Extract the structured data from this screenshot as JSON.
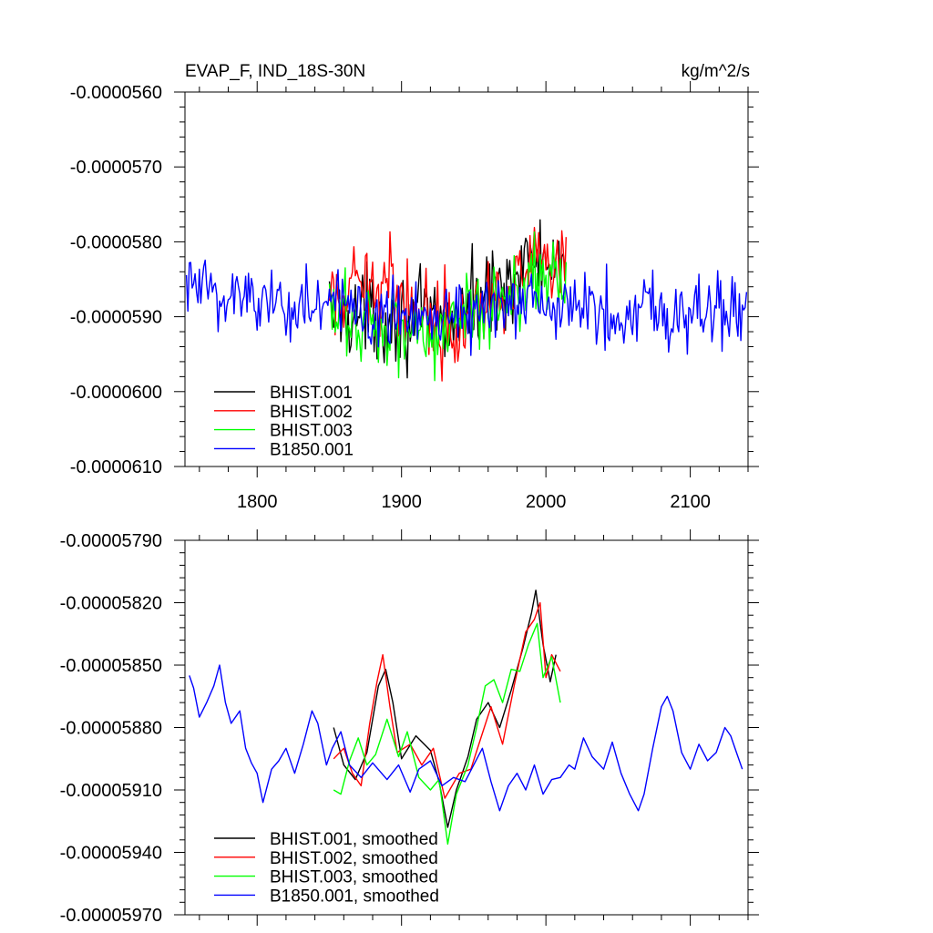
{
  "chart_data": [
    {
      "type": "line",
      "title": "EVAP_F, IND_18S-30N",
      "units_label": "kg/m^2/s",
      "xlabel": "",
      "ylabel": "",
      "xlim": [
        1750,
        2140
      ],
      "ylim": [
        -6.1e-05,
        -5.6e-05
      ],
      "x_ticks": [
        1800,
        1900,
        2000,
        2100
      ],
      "x_tick_labels": [
        "1800",
        "1900",
        "2000",
        "2100"
      ],
      "y_ticks": [
        -5.6e-05,
        -5.7e-05,
        -5.8e-05,
        -5.9e-05,
        -6e-05,
        -6.1e-05
      ],
      "y_tick_labels": [
        "-0.0000560",
        "-0.0000570",
        "-0.0000580",
        "-0.0000590",
        "-0.0000600",
        "-0.0000610"
      ],
      "grid": false,
      "legend_position": "bottom-left",
      "series": [
        {
          "name": "BHIST.001",
          "color": "#000000",
          "x_start": 1850,
          "x_end": 2014,
          "mean": -5.89e-05,
          "amp": 4e-07,
          "trend": [
            [
              1850,
              0
            ],
            [
              1930,
              -2e-07
            ],
            [
              1995,
              7e-07
            ],
            [
              2014,
              3e-07
            ]
          ]
        },
        {
          "name": "BHIST.002",
          "color": "#ff0000",
          "x_start": 1850,
          "x_end": 2014,
          "mean": -5.89e-05,
          "amp": 4e-07,
          "trend": [
            [
              1850,
              0
            ],
            [
              1885,
              4e-07
            ],
            [
              1930,
              -2e-07
            ],
            [
              1995,
              6e-07
            ],
            [
              2014,
              4e-07
            ]
          ]
        },
        {
          "name": "BHIST.003",
          "color": "#00ff00",
          "x_start": 1850,
          "x_end": 2014,
          "mean": -5.89e-05,
          "amp": 4e-07,
          "trend": [
            [
              1850,
              -1e-07
            ],
            [
              1930,
              -3e-07
            ],
            [
              1995,
              5e-07
            ],
            [
              2014,
              4e-07
            ]
          ]
        },
        {
          "name": "B1850.001",
          "color": "#0000ff",
          "x_start": 1751,
          "x_end": 2139,
          "mean": -5.89e-05,
          "amp": 3.5e-07,
          "trend": [
            [
              1751,
              3e-07
            ],
            [
              1850,
              0
            ],
            [
              2139,
              0
            ]
          ]
        }
      ]
    },
    {
      "type": "line",
      "title": "",
      "xlabel": "",
      "ylabel": "",
      "xlim": [
        1750,
        2140
      ],
      "ylim": [
        -5.97e-05,
        -5.79e-05
      ],
      "x_ticks": [
        1800,
        1900,
        2000,
        2100
      ],
      "y_ticks": [
        -5.79e-05,
        -5.82e-05,
        -5.85e-05,
        -5.88e-05,
        -5.91e-05,
        -5.94e-05,
        -5.97e-05
      ],
      "y_tick_labels": [
        "-0.00005790",
        "-0.00005820",
        "-0.00005850",
        "-0.00005880",
        "-0.00005910",
        "-0.00005940",
        "-0.00005970"
      ],
      "grid": false,
      "legend_position": "bottom-left",
      "series": [
        {
          "name": "BHIST.001, smoothed",
          "color": "#000000",
          "points": [
            [
              1853,
              -5.88e-05
            ],
            [
              1860,
              -5.898e-05
            ],
            [
              1868,
              -5.905e-05
            ],
            [
              1876,
              -5.892e-05
            ],
            [
              1884,
              -5.86e-05
            ],
            [
              1889,
              -5.852e-05
            ],
            [
              1894,
              -5.868e-05
            ],
            [
              1900,
              -5.895e-05
            ],
            [
              1910,
              -5.884e-05
            ],
            [
              1920,
              -5.891e-05
            ],
            [
              1926,
              -5.906e-05
            ],
            [
              1932,
              -5.928e-05
            ],
            [
              1938,
              -5.91e-05
            ],
            [
              1946,
              -5.894e-05
            ],
            [
              1952,
              -5.876e-05
            ],
            [
              1960,
              -5.868e-05
            ],
            [
              1968,
              -5.88e-05
            ],
            [
              1976,
              -5.862e-05
            ],
            [
              1984,
              -5.842e-05
            ],
            [
              1990,
              -5.825e-05
            ],
            [
              1993,
              -5.814e-05
            ],
            [
              1998,
              -5.84e-05
            ],
            [
              2003,
              -5.858e-05
            ],
            [
              2007,
              -5.845e-05
            ]
          ]
        },
        {
          "name": "BHIST.002, smoothed",
          "color": "#ff0000",
          "points": [
            [
              1853,
              -5.895e-05
            ],
            [
              1860,
              -5.89e-05
            ],
            [
              1866,
              -5.902e-05
            ],
            [
              1872,
              -5.908e-05
            ],
            [
              1878,
              -5.878e-05
            ],
            [
              1883,
              -5.858e-05
            ],
            [
              1887,
              -5.845e-05
            ],
            [
              1892,
              -5.87e-05
            ],
            [
              1897,
              -5.892e-05
            ],
            [
              1906,
              -5.888e-05
            ],
            [
              1914,
              -5.898e-05
            ],
            [
              1922,
              -5.89e-05
            ],
            [
              1930,
              -5.914e-05
            ],
            [
              1940,
              -5.902e-05
            ],
            [
              1948,
              -5.9e-05
            ],
            [
              1955,
              -5.885e-05
            ],
            [
              1962,
              -5.87e-05
            ],
            [
              1970,
              -5.888e-05
            ],
            [
              1978,
              -5.86e-05
            ],
            [
              1986,
              -5.834e-05
            ],
            [
              1992,
              -5.828e-05
            ],
            [
              1996,
              -5.82e-05
            ],
            [
              2000,
              -5.856e-05
            ],
            [
              2004,
              -5.845e-05
            ],
            [
              2010,
              -5.853e-05
            ]
          ]
        },
        {
          "name": "BHIST.003, smoothed",
          "color": "#00ff00",
          "points": [
            [
              1853,
              -5.91e-05
            ],
            [
              1858,
              -5.912e-05
            ],
            [
              1864,
              -5.896e-05
            ],
            [
              1870,
              -5.885e-05
            ],
            [
              1876,
              -5.898e-05
            ],
            [
              1882,
              -5.893e-05
            ],
            [
              1890,
              -5.876e-05
            ],
            [
              1898,
              -5.894e-05
            ],
            [
              1904,
              -5.882e-05
            ],
            [
              1912,
              -5.904e-05
            ],
            [
              1920,
              -5.91e-05
            ],
            [
              1926,
              -5.905e-05
            ],
            [
              1932,
              -5.936e-05
            ],
            [
              1938,
              -5.912e-05
            ],
            [
              1946,
              -5.898e-05
            ],
            [
              1952,
              -5.88e-05
            ],
            [
              1958,
              -5.86e-05
            ],
            [
              1964,
              -5.857e-05
            ],
            [
              1970,
              -5.868e-05
            ],
            [
              1976,
              -5.852e-05
            ],
            [
              1982,
              -5.853e-05
            ],
            [
              1988,
              -5.84e-05
            ],
            [
              1994,
              -5.83e-05
            ],
            [
              1998,
              -5.856e-05
            ],
            [
              2004,
              -5.846e-05
            ],
            [
              2010,
              -5.868e-05
            ]
          ]
        },
        {
          "name": "B1850.001, smoothed",
          "color": "#0000ff",
          "points": [
            [
              1753,
              -5.855e-05
            ],
            [
              1756,
              -5.861e-05
            ],
            [
              1760,
              -5.875e-05
            ],
            [
              1765,
              -5.868e-05
            ],
            [
              1770,
              -5.86e-05
            ],
            [
              1774,
              -5.85e-05
            ],
            [
              1778,
              -5.868e-05
            ],
            [
              1782,
              -5.878e-05
            ],
            [
              1788,
              -5.872e-05
            ],
            [
              1792,
              -5.89e-05
            ],
            [
              1796,
              -5.897e-05
            ],
            [
              1800,
              -5.902e-05
            ],
            [
              1804,
              -5.916e-05
            ],
            [
              1810,
              -5.9e-05
            ],
            [
              1815,
              -5.896e-05
            ],
            [
              1820,
              -5.89e-05
            ],
            [
              1826,
              -5.902e-05
            ],
            [
              1832,
              -5.888e-05
            ],
            [
              1838,
              -5.872e-05
            ],
            [
              1842,
              -5.878e-05
            ],
            [
              1848,
              -5.898e-05
            ],
            [
              1852,
              -5.89e-05
            ],
            [
              1858,
              -5.882e-05
            ],
            [
              1864,
              -5.898e-05
            ],
            [
              1872,
              -5.904e-05
            ],
            [
              1880,
              -5.897e-05
            ],
            [
              1890,
              -5.905e-05
            ],
            [
              1898,
              -5.898e-05
            ],
            [
              1906,
              -5.911e-05
            ],
            [
              1912,
              -5.9e-05
            ],
            [
              1920,
              -5.896e-05
            ],
            [
              1928,
              -5.908e-05
            ],
            [
              1936,
              -5.904e-05
            ],
            [
              1944,
              -5.906e-05
            ],
            [
              1950,
              -5.898e-05
            ],
            [
              1956,
              -5.89e-05
            ],
            [
              1962,
              -5.906e-05
            ],
            [
              1968,
              -5.92e-05
            ],
            [
              1974,
              -5.908e-05
            ],
            [
              1980,
              -5.902e-05
            ],
            [
              1986,
              -5.91e-05
            ],
            [
              1992,
              -5.898e-05
            ],
            [
              1998,
              -5.912e-05
            ],
            [
              2004,
              -5.905e-05
            ],
            [
              2010,
              -5.904e-05
            ],
            [
              2016,
              -5.898e-05
            ],
            [
              2020,
              -5.9e-05
            ],
            [
              2026,
              -5.885e-05
            ],
            [
              2032,
              -5.894e-05
            ],
            [
              2040,
              -5.9e-05
            ],
            [
              2046,
              -5.887e-05
            ],
            [
              2052,
              -5.902e-05
            ],
            [
              2058,
              -5.912e-05
            ],
            [
              2064,
              -5.92e-05
            ],
            [
              2068,
              -5.912e-05
            ],
            [
              2074,
              -5.89e-05
            ],
            [
              2080,
              -5.87e-05
            ],
            [
              2084,
              -5.865e-05
            ],
            [
              2088,
              -5.872e-05
            ],
            [
              2094,
              -5.892e-05
            ],
            [
              2100,
              -5.9e-05
            ],
            [
              2106,
              -5.888e-05
            ],
            [
              2112,
              -5.896e-05
            ],
            [
              2118,
              -5.892e-05
            ],
            [
              2124,
              -5.88e-05
            ],
            [
              2128,
              -5.884e-05
            ],
            [
              2132,
              -5.892e-05
            ],
            [
              2136,
              -5.9e-05
            ]
          ]
        }
      ]
    }
  ]
}
